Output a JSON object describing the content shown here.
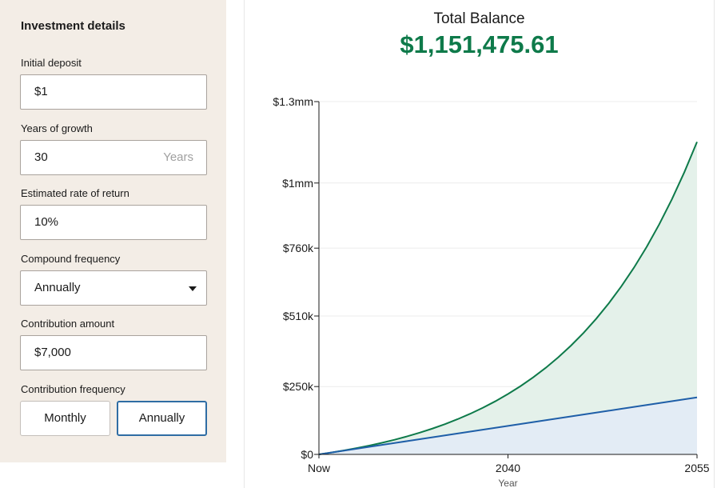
{
  "form": {
    "title": "Investment details",
    "initial_deposit": {
      "label": "Initial deposit",
      "value": "$1"
    },
    "years_of_growth": {
      "label": "Years of growth",
      "value": "30",
      "suffix": "Years"
    },
    "rate_of_return": {
      "label": "Estimated rate of return",
      "value": "10%"
    },
    "compound_frequency": {
      "label": "Compound frequency",
      "value": "Annually"
    },
    "contribution_amount": {
      "label": "Contribution amount",
      "value": "$7,000"
    },
    "contribution_frequency": {
      "label": "Contribution frequency",
      "options": [
        "Monthly",
        "Annually"
      ],
      "selected": "Annually"
    }
  },
  "summary": {
    "label": "Total Balance",
    "value": "$1,151,475.61"
  },
  "colors": {
    "balance_line": "#0e7a4a",
    "balance_fill": "#e4f1ea",
    "contribution_line": "#1f5fa8",
    "contribution_fill": "#e3ecf5",
    "accent_total": "#0e7a4a"
  },
  "chart_data": {
    "type": "area",
    "x": [
      2025,
      2026,
      2027,
      2028,
      2029,
      2030,
      2031,
      2032,
      2033,
      2034,
      2035,
      2036,
      2037,
      2038,
      2039,
      2040,
      2041,
      2042,
      2043,
      2044,
      2045,
      2046,
      2047,
      2048,
      2049,
      2050,
      2051,
      2052,
      2053,
      2054,
      2055
    ],
    "x_ticks": [
      {
        "value": 2025,
        "label": "Now"
      },
      {
        "value": 2040,
        "label": "2040"
      },
      {
        "value": 2055,
        "label": "2055"
      }
    ],
    "xlabel": "Year",
    "ylim": [
      0,
      1300000
    ],
    "y_ticks": [
      {
        "value": 0,
        "label": "$0"
      },
      {
        "value": 250000,
        "label": "$250k"
      },
      {
        "value": 510000,
        "label": "$510k"
      },
      {
        "value": 760000,
        "label": "$760k"
      },
      {
        "value": 1000000,
        "label": "$1mm"
      },
      {
        "value": 1300000,
        "label": "$1.3mm"
      }
    ],
    "grid": true,
    "series": [
      {
        "values": [
          1,
          7001,
          14701,
          23171,
          32488,
          42737,
          54011,
          66412,
          80053,
          95058,
          111564,
          129720,
          149692,
          171661,
          195827,
          222410,
          251651,
          283816,
          319198,
          358118,
          400930,
          448023,
          499825,
          556808,
          619489,
          688438,
          764282,
          847710,
          939481,
          1040429,
          1151476
        ]
      },
      {
        "values": [
          1,
          7001,
          14001,
          21001,
          28001,
          35001,
          42001,
          49001,
          56001,
          63001,
          70001,
          77001,
          84001,
          91001,
          98001,
          105001,
          112001,
          119001,
          126001,
          133001,
          140001,
          147001,
          154001,
          161001,
          168001,
          175001,
          182001,
          189001,
          196001,
          203001,
          210001
        ]
      }
    ]
  }
}
